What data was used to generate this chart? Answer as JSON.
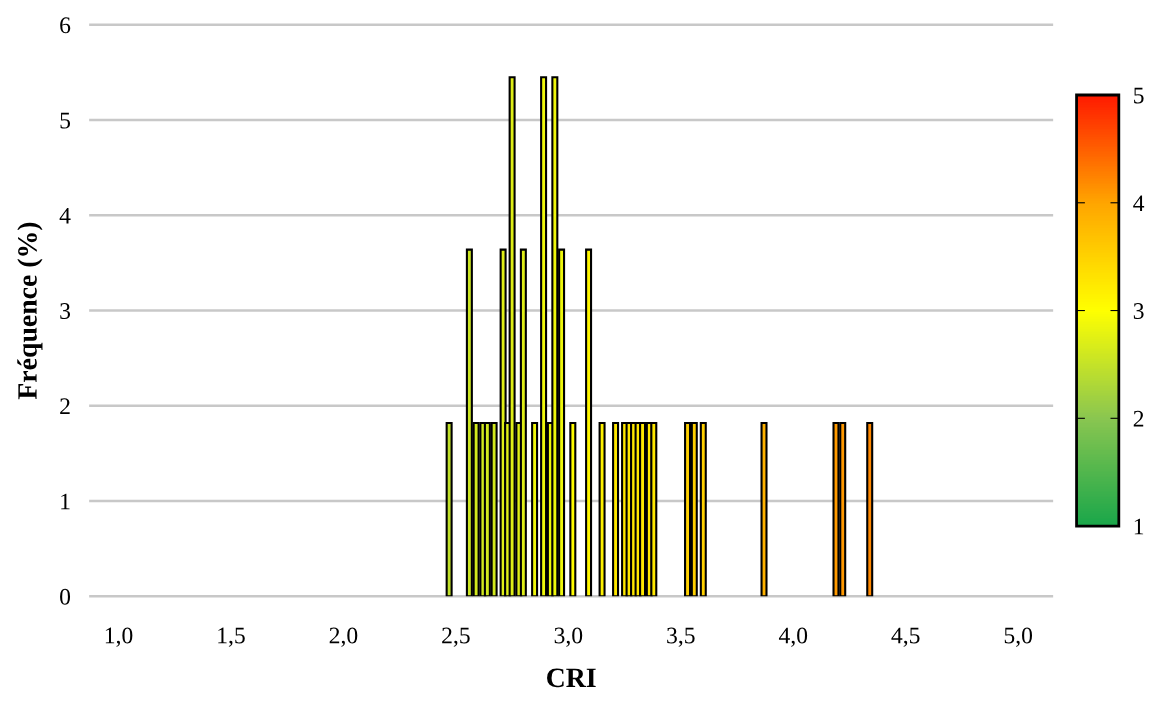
{
  "chart_data": {
    "type": "bar",
    "xlabel": "CRI",
    "ylabel": "Fréquence (%)",
    "x": [
      2.47,
      2.56,
      2.59,
      2.62,
      2.64,
      2.67,
      2.71,
      2.73,
      2.75,
      2.78,
      2.8,
      2.85,
      2.89,
      2.92,
      2.94,
      2.97,
      3.02,
      3.09,
      3.15,
      3.21,
      3.25,
      3.27,
      3.29,
      3.31,
      3.33,
      3.36,
      3.38,
      3.53,
      3.56,
      3.6,
      3.87,
      4.19,
      4.22,
      4.34
    ],
    "values": [
      1.82,
      3.64,
      1.82,
      1.82,
      1.82,
      1.82,
      3.64,
      1.82,
      5.45,
      1.82,
      3.64,
      1.82,
      5.45,
      1.82,
      5.45,
      3.64,
      1.82,
      3.64,
      1.82,
      1.82,
      1.82,
      1.82,
      1.82,
      1.82,
      1.82,
      1.82,
      1.82,
      1.82,
      1.82,
      1.82,
      1.82,
      1.82,
      1.82,
      1.82
    ],
    "colors": [
      "#c1e12a",
      "#cce623",
      "#d2e91e",
      "#d2e91e",
      "#d2e91e",
      "#d2e91e",
      "#dfee18",
      "#dfee18",
      "#dfee18",
      "#dfee18",
      "#dfee18",
      "#eef70c",
      "#eef70c",
      "#eef70c",
      "#eef70c",
      "#eef70c",
      "#fffc00",
      "#fff700",
      "#fff200",
      "#ffe800",
      "#ffe800",
      "#ffe800",
      "#ffe800",
      "#ffe800",
      "#ffe800",
      "#ffe800",
      "#ffe800",
      "#ffd000",
      "#ffd000",
      "#ffd000",
      "#ffb200",
      "#ff9a00",
      "#ff9800",
      "#ff8800"
    ],
    "xlim": [
      0.875,
      5.15
    ],
    "xticks": [
      {
        "value": 1.0,
        "label": "1,0"
      },
      {
        "value": 1.5,
        "label": "1,5"
      },
      {
        "value": 2.0,
        "label": "2,0"
      },
      {
        "value": 2.5,
        "label": "2,5"
      },
      {
        "value": 3.0,
        "label": "3,0"
      },
      {
        "value": 3.5,
        "label": "3,5"
      },
      {
        "value": 4.0,
        "label": "4,0"
      },
      {
        "value": 4.5,
        "label": "4,5"
      },
      {
        "value": 5.0,
        "label": "5,0"
      }
    ],
    "ylim": [
      0,
      6
    ],
    "yticks": [
      0,
      1,
      2,
      3,
      4,
      5,
      6
    ],
    "grid": "y",
    "legend": false,
    "clim": [
      1,
      5
    ],
    "cticks": [
      1,
      2,
      3,
      4,
      5
    ]
  }
}
